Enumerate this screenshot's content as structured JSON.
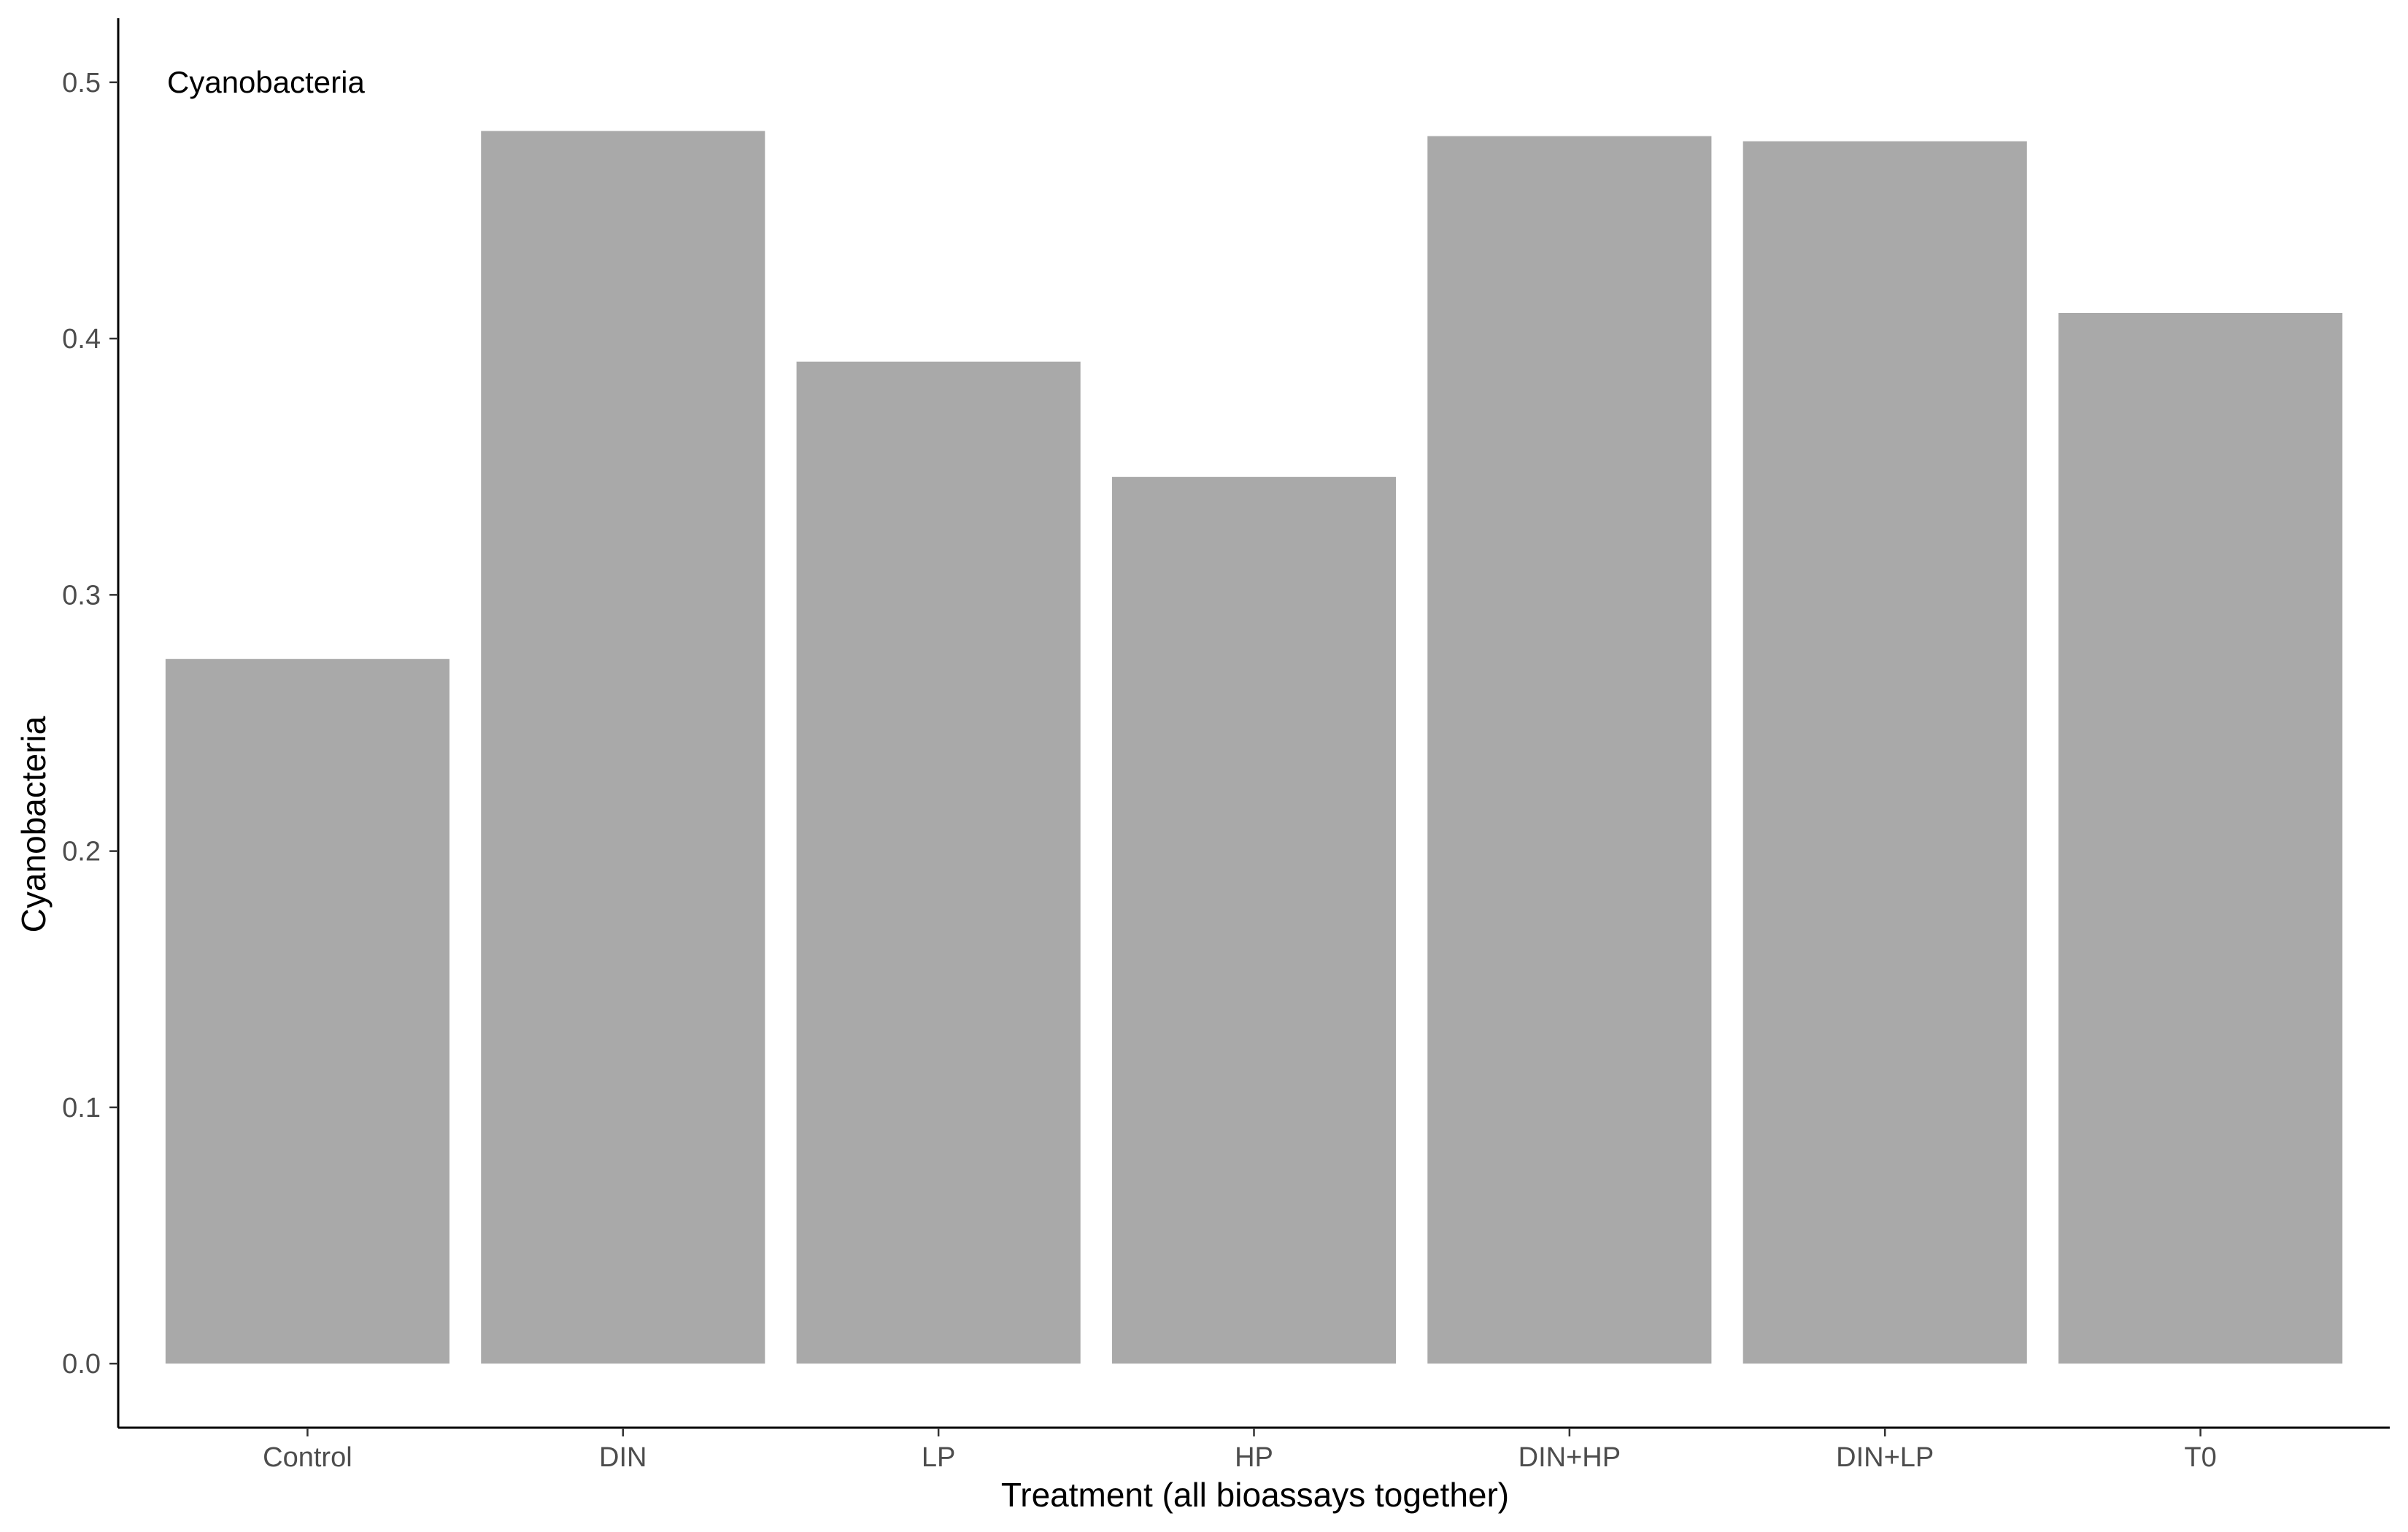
{
  "chart_data": {
    "type": "bar",
    "categories": [
      "Control",
      "DIN",
      "LP",
      "HP",
      "DIN+HP",
      "DIN+LP",
      "T0"
    ],
    "values": [
      0.275,
      0.481,
      0.391,
      0.346,
      0.479,
      0.477,
      0.41
    ],
    "annotation": "Cyanobacteria",
    "xlabel": "Treatment (all bioassays together)",
    "ylabel": "Cyanobacteria",
    "ylim": [
      -0.025,
      0.525
    ],
    "yticks": [
      0.0,
      0.1,
      0.2,
      0.3,
      0.4,
      0.5
    ],
    "ytick_labels": [
      "0.0",
      "0.1",
      "0.2",
      "0.3",
      "0.4",
      "0.5"
    ],
    "grid": false,
    "colors": {
      "bar": "#a9a9a9",
      "axis": "#000000",
      "tick_label": "#4d4d4d"
    }
  }
}
